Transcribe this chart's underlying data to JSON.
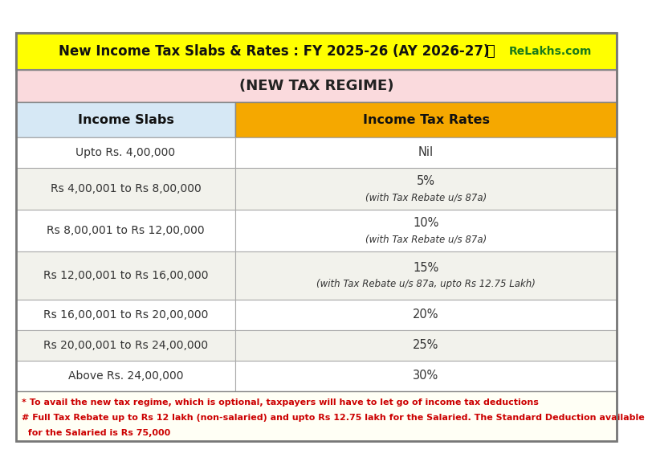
{
  "title": "New Income Tax Slabs & Rates : FY 2025-26 (AY 2026-27)",
  "website": "ReLakhs.com",
  "subtitle": "(NEW TAX REGIME)",
  "col1_header": "Income Slabs",
  "col2_header": "Income Tax Rates",
  "rows": [
    [
      "Upto Rs. 4,00,000",
      "Nil",
      ""
    ],
    [
      "Rs 4,00,001 to Rs 8,00,000",
      "5%",
      "(with Tax Rebate u/s 87a)"
    ],
    [
      "Rs 8,00,001 to Rs 12,00,000",
      "10%",
      "(with Tax Rebate u/s 87a)"
    ],
    [
      "Rs 12,00,001 to Rs 16,00,000",
      "15%",
      "(with Tax Rebate u/s 87a, upto Rs 12.75 Lakh)"
    ],
    [
      "Rs 16,00,001 to Rs 20,00,000",
      "20%",
      ""
    ],
    [
      "Rs 20,00,001 to Rs 24,00,000",
      "25%",
      ""
    ],
    [
      "Above Rs. 24,00,000",
      "30%",
      ""
    ]
  ],
  "footnote1": "* To avail the new tax regime, which is optional, taxpayers will have to let go of income tax deductions",
  "footnote2": "# Full Tax Rebate up to Rs 12 lakh (non-salaried) and upto Rs 12.75 lakh for the Salaried. The Standard Deduction available",
  "footnote3": "  for the Salaried is Rs 75,000",
  "title_bg": "#FFFF00",
  "subtitle_bg": "#FADADD",
  "col1_header_bg": "#D6E8F5",
  "col2_header_bg": "#F5A800",
  "row_bg": "#F2F2EC",
  "border_color": "#999999",
  "outer_border": "#888888",
  "title_color": "#111111",
  "subtitle_color": "#222222",
  "header_color": "#111111",
  "row_color": "#333333",
  "footnote_color": "#CC0000",
  "website_color": "#1A7A1A",
  "footnote_bg": "#FFFFF5"
}
